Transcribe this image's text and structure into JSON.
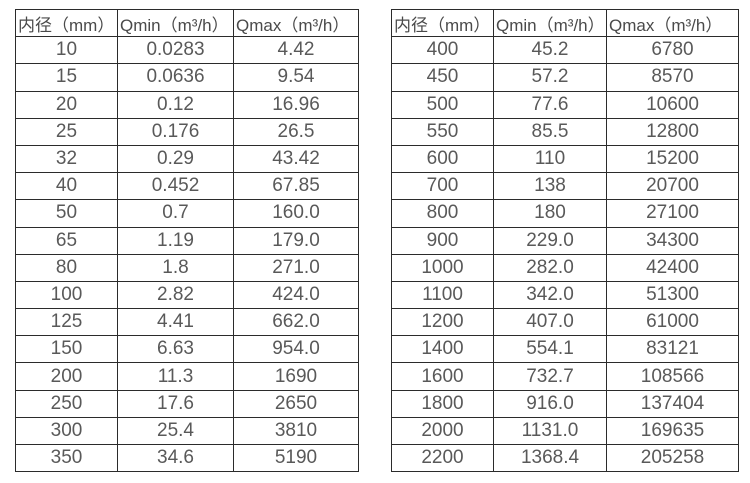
{
  "page": {
    "background_color": "#ffffff",
    "border_color": "#2b2b2b",
    "header_text_color": "#4a4a4a",
    "cell_text_color": "#595959"
  },
  "tables": [
    {
      "name": "small-diameter-flow-table",
      "headers": [
        "内径（mm）",
        "Qmin（m³/h）",
        "Qmax（m³/h）"
      ],
      "rows": [
        [
          "10",
          "0.0283",
          "4.42"
        ],
        [
          "15",
          "0.0636",
          "9.54"
        ],
        [
          "20",
          "0.12",
          "16.96"
        ],
        [
          "25",
          "0.176",
          "26.5"
        ],
        [
          "32",
          "0.29",
          "43.42"
        ],
        [
          "40",
          "0.452",
          "67.85"
        ],
        [
          "50",
          "0.7",
          "160.0"
        ],
        [
          "65",
          "1.19",
          "179.0"
        ],
        [
          "80",
          "1.8",
          "271.0"
        ],
        [
          "100",
          "2.82",
          "424.0"
        ],
        [
          "125",
          "4.41",
          "662.0"
        ],
        [
          "150",
          "6.63",
          "954.0"
        ],
        [
          "200",
          "11.3",
          "1690"
        ],
        [
          "250",
          "17.6",
          "2650"
        ],
        [
          "300",
          "25.4",
          "3810"
        ],
        [
          "350",
          "34.6",
          "5190"
        ]
      ]
    },
    {
      "name": "large-diameter-flow-table",
      "headers": [
        "内径（mm）",
        "Qmin（m³/h）",
        "Qmax（m³/h）"
      ],
      "rows": [
        [
          "400",
          "45.2",
          "6780"
        ],
        [
          "450",
          "57.2",
          "8570"
        ],
        [
          "500",
          "77.6",
          "10600"
        ],
        [
          "550",
          "85.5",
          "12800"
        ],
        [
          "600",
          "110",
          "15200"
        ],
        [
          "700",
          "138",
          "20700"
        ],
        [
          "800",
          "180",
          "27100"
        ],
        [
          "900",
          "229.0",
          "34300"
        ],
        [
          "1000",
          "282.0",
          "42400"
        ],
        [
          "1100",
          "342.0",
          "51300"
        ],
        [
          "1200",
          "407.0",
          "61000"
        ],
        [
          "1400",
          "554.1",
          "83121"
        ],
        [
          "1600",
          "732.7",
          "108566"
        ],
        [
          "1800",
          "916.0",
          "137404"
        ],
        [
          "2000",
          "1131.0",
          "169635"
        ],
        [
          "2200",
          "1368.4",
          "205258"
        ]
      ]
    }
  ]
}
